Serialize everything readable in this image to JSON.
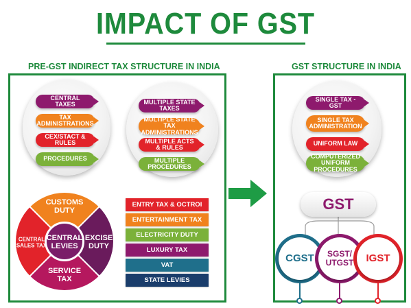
{
  "title": "IMPACT OF GST",
  "pre_gst": {
    "label": "PRE-GST INDIRECT TAX STRUCTURE IN INDIA",
    "central_list": [
      {
        "text": "CENTRAL TAXES",
        "color": "#8e1a6d"
      },
      {
        "text": "TAX ADMINISTRATIONS",
        "color": "#f0821e"
      },
      {
        "text": "CEX/STACT & RULES",
        "color": "#e2232a"
      },
      {
        "text": "PROCEDURES",
        "color": "#7bb13a"
      }
    ],
    "state_list": [
      {
        "text": "MULTIPLE STATE TAXES",
        "color": "#8e1a6d"
      },
      {
        "text": "MULTIPLE STATE TAX ADMINISTRATIONS",
        "color": "#f0821e"
      },
      {
        "text": "MULTIPLE ACTS & RULES",
        "color": "#e2232a"
      },
      {
        "text": "MULTIPLE PROCEDURES",
        "color": "#7bb13a"
      }
    ],
    "wheel": {
      "center": "CENTRAL LEVIES",
      "segments": [
        {
          "text": "CUSTOMS DUTY",
          "color": "#f0821e"
        },
        {
          "text": "EXCISE DUTY",
          "color": "#6a1b5c"
        },
        {
          "text": "SERVICE TAX",
          "color": "#b5185e"
        },
        {
          "text": "CENTRAL SALES TAX",
          "color": "#e2232a"
        }
      ]
    },
    "state_levies": [
      {
        "text": "ENTRY TAX & OCTROI",
        "color": "#e2232a"
      },
      {
        "text": "ENTERTAINMENT TAX",
        "color": "#f0821e"
      },
      {
        "text": "ELECTRICITY DUTY",
        "color": "#7bb13a"
      },
      {
        "text": "LUXURY TAX",
        "color": "#8e1a6d"
      },
      {
        "text": "VAT",
        "color": "#1f6f8b"
      },
      {
        "text": "STATE LEVIES",
        "color": "#1a3d6b"
      }
    ]
  },
  "gst": {
    "label": "GST STRUCTURE IN INDIA",
    "list": [
      {
        "text": "SINGLE TAX - GST",
        "color": "#8e1a6d"
      },
      {
        "text": "SINGLE TAX ADMINISTRATION",
        "color": "#f0821e"
      },
      {
        "text": "UNIFORM LAW",
        "color": "#e2232a"
      },
      {
        "text": "COMPUTERIZED UNIFORM PROCEDURES",
        "color": "#7bb13a"
      }
    ],
    "center": "GST",
    "components": [
      {
        "text": "CGST",
        "color": "#1f6f8b"
      },
      {
        "text": "SGST/ UTGST",
        "color": "#8e1a6d"
      },
      {
        "text": "IGST",
        "color": "#e2232a"
      }
    ]
  },
  "colors": {
    "accent": "#1e8a3c"
  }
}
